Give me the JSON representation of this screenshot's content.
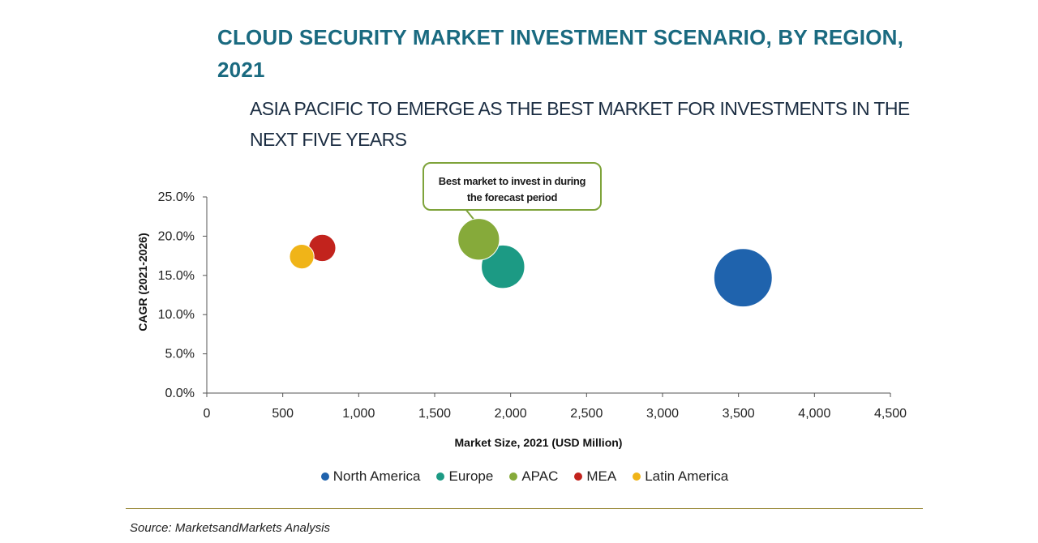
{
  "title": "CLOUD SECURITY MARKET INVESTMENT SCENARIO, BY REGION, 2021",
  "subtitle": "ASIA PACIFIC TO EMERGE AS THE BEST MARKET FOR INVESTMENTS IN THE NEXT FIVE YEARS",
  "source": "Source: MarketsandMarkets Analysis",
  "callout": {
    "line1": "Best market to invest in during",
    "line2": "the forecast period",
    "color": "#7ea33a"
  },
  "chart_data": {
    "type": "scatter",
    "subtype": "bubble",
    "xlabel": "Market Size, 2021 (USD Million)",
    "ylabel": "CAGR (2021-2026)",
    "xlim": [
      0,
      4500
    ],
    "ylim": [
      0,
      25
    ],
    "x_ticks": [
      {
        "value": 0,
        "label": "0"
      },
      {
        "value": 500,
        "label": "500"
      },
      {
        "value": 1000,
        "label": "1,000"
      },
      {
        "value": 1500,
        "label": "1,500"
      },
      {
        "value": 2000,
        "label": "2,000"
      },
      {
        "value": 2500,
        "label": "2,500"
      },
      {
        "value": 3000,
        "label": "3,000"
      },
      {
        "value": 3500,
        "label": "3,500"
      },
      {
        "value": 4000,
        "label": "4,000"
      },
      {
        "value": 4500,
        "label": "4,500"
      }
    ],
    "y_ticks": [
      {
        "value": 0,
        "label": "0.0%"
      },
      {
        "value": 5,
        "label": "5.0%"
      },
      {
        "value": 10,
        "label": "10.0%"
      },
      {
        "value": 15,
        "label": "15.0%"
      },
      {
        "value": 20,
        "label": "20.0%"
      },
      {
        "value": 25,
        "label": "25.0%"
      }
    ],
    "grid": false,
    "legend_position": "bottom",
    "series": [
      {
        "name": "North America",
        "x": 3530,
        "y": 14.7,
        "size": 3530,
        "color": "#1f63ad"
      },
      {
        "name": "Europe",
        "x": 1950,
        "y": 16.1,
        "size": 1950,
        "color": "#1c9a84"
      },
      {
        "name": "APAC",
        "x": 1790,
        "y": 19.6,
        "size": 1790,
        "color": "#86aa3a"
      },
      {
        "name": "MEA",
        "x": 760,
        "y": 18.5,
        "size": 760,
        "color": "#c2231d"
      },
      {
        "name": "Latin America",
        "x": 625,
        "y": 17.4,
        "size": 625,
        "color": "#f0b418"
      }
    ]
  }
}
